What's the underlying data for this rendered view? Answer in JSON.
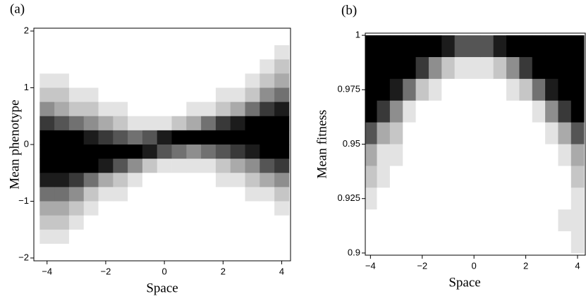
{
  "chart_data": [
    {
      "type": "heatmap",
      "panel_label": "(a)",
      "xlabel": "Space",
      "ylabel": "Mean phenotype",
      "xlim": [
        -4.45,
        4.3
      ],
      "ylim": [
        -2.05,
        2.05
      ],
      "xticks": [
        {
          "value": -4,
          "label": "−4"
        },
        {
          "value": -2,
          "label": "−2"
        },
        0,
        2,
        4
      ],
      "yticks": [
        {
          "value": -2,
          "label": "−2"
        },
        {
          "value": -1,
          "label": "−1"
        },
        0,
        1,
        2
      ],
      "x": [
        -4,
        -3.5,
        -3,
        -2.5,
        -2,
        -1.5,
        -1,
        -0.5,
        0,
        0.5,
        1,
        1.5,
        2,
        2.5,
        3,
        3.5,
        4
      ],
      "y": [
        1.875,
        1.625,
        1.375,
        1.125,
        0.875,
        0.625,
        0.375,
        0.125,
        -0.125,
        -0.375,
        -0.625,
        -0.875,
        -1.125,
        -1.375,
        -1.625,
        -1.875
      ],
      "z": [
        [
          0,
          0,
          0,
          1,
          2,
          4,
          7,
          9,
          9,
          9,
          8,
          5,
          3,
          2,
          1,
          0
        ],
        [
          0,
          0,
          0,
          1,
          2,
          3,
          6,
          9,
          9,
          9,
          8,
          5,
          3,
          2,
          1,
          0
        ],
        [
          0,
          0,
          0,
          0,
          1,
          2,
          5,
          9,
          9,
          9,
          7,
          4,
          2,
          1,
          0,
          0
        ],
        [
          0,
          0,
          0,
          0,
          1,
          2,
          4,
          8,
          9,
          9,
          5,
          2,
          1,
          0,
          0,
          0
        ],
        [
          0,
          0,
          0,
          0,
          0,
          1,
          3,
          7,
          9,
          8,
          3,
          1,
          0,
          0,
          0,
          0
        ],
        [
          0,
          0,
          0,
          0,
          0,
          1,
          2,
          6,
          9,
          6,
          2,
          1,
          0,
          0,
          0,
          0
        ],
        [
          0,
          0,
          0,
          0,
          0,
          0,
          1,
          5,
          9,
          4,
          1,
          0,
          0,
          0,
          0,
          0
        ],
        [
          0,
          0,
          0,
          0,
          0,
          0,
          1,
          6,
          8,
          2,
          0,
          0,
          0,
          0,
          0,
          0
        ],
        [
          0,
          0,
          0,
          0,
          0,
          0,
          1,
          8,
          6,
          1,
          0,
          0,
          0,
          0,
          0,
          0
        ],
        [
          0,
          0,
          0,
          0,
          0,
          0,
          2,
          9,
          5,
          1,
          0,
          0,
          0,
          0,
          0,
          0
        ],
        [
          0,
          0,
          0,
          0,
          0,
          1,
          3,
          9,
          4,
          1,
          0,
          0,
          0,
          0,
          0,
          0
        ],
        [
          0,
          0,
          0,
          0,
          0,
          1,
          5,
          9,
          5,
          1,
          0,
          0,
          0,
          0,
          0,
          0
        ],
        [
          0,
          0,
          0,
          0,
          1,
          2,
          7,
          9,
          6,
          2,
          1,
          0,
          0,
          0,
          0,
          0
        ],
        [
          0,
          0,
          0,
          0,
          1,
          3,
          8,
          9,
          7,
          3,
          1,
          0,
          0,
          0,
          0,
          0
        ],
        [
          0,
          0,
          0,
          1,
          2,
          5,
          9,
          9,
          8,
          4,
          2,
          1,
          0,
          0,
          0,
          0
        ],
        [
          0,
          0,
          1,
          2,
          4,
          7,
          9,
          9,
          9,
          6,
          3,
          1,
          0,
          0,
          0,
          0
        ],
        [
          0,
          1,
          2,
          3,
          5,
          8,
          9,
          9,
          9,
          7,
          4,
          2,
          1,
          0,
          0,
          0
        ]
      ],
      "zmax": 9
    },
    {
      "type": "heatmap",
      "panel_label": "(b)",
      "xlabel": "Space",
      "ylabel": "Mean fitness",
      "xlim": [
        -4.2,
        4.3
      ],
      "ylim": [
        0.899,
        1.001
      ],
      "xticks": [
        {
          "value": -4,
          "label": "−4"
        },
        {
          "value": -2,
          "label": "−2"
        },
        0,
        2,
        4
      ],
      "yticks": [
        0.9,
        0.925,
        0.95,
        0.975,
        1
      ],
      "x": [
        -4,
        -3.5,
        -3,
        -2.5,
        -2,
        -1.5,
        -1,
        -0.5,
        0,
        0.5,
        1,
        1.5,
        2,
        2.5,
        3,
        3.5,
        4
      ],
      "y": [
        0.995,
        0.985,
        0.975,
        0.965,
        0.955,
        0.945,
        0.935,
        0.925,
        0.915,
        0.905
      ],
      "z": [
        [
          9,
          9,
          9,
          9,
          6,
          3,
          2,
          1,
          0,
          0
        ],
        [
          9,
          9,
          9,
          7,
          3,
          1,
          1,
          0,
          0,
          0
        ],
        [
          9,
          9,
          8,
          4,
          2,
          1,
          0,
          0,
          0,
          0
        ],
        [
          9,
          9,
          5,
          1,
          0,
          0,
          0,
          0,
          0,
          0
        ],
        [
          9,
          7,
          2,
          0,
          0,
          0,
          0,
          0,
          0,
          0
        ],
        [
          9,
          4,
          1,
          0,
          0,
          0,
          0,
          0,
          0,
          0
        ],
        [
          8,
          2,
          0,
          0,
          0,
          0,
          0,
          0,
          0,
          0
        ],
        [
          6,
          1,
          0,
          0,
          0,
          0,
          0,
          0,
          0,
          0
        ],
        [
          6,
          1,
          0,
          0,
          0,
          0,
          0,
          0,
          0,
          0
        ],
        [
          6,
          1,
          0,
          0,
          0,
          0,
          0,
          0,
          0,
          0
        ],
        [
          8,
          2,
          0,
          0,
          0,
          0,
          0,
          0,
          0,
          0
        ],
        [
          9,
          4,
          1,
          0,
          0,
          0,
          0,
          0,
          0,
          0
        ],
        [
          9,
          7,
          2,
          0,
          0,
          0,
          0,
          0,
          0,
          0
        ],
        [
          9,
          9,
          5,
          1,
          0,
          0,
          0,
          0,
          0,
          0
        ],
        [
          9,
          9,
          8,
          4,
          1,
          0,
          0,
          0,
          0,
          0
        ],
        [
          9,
          9,
          9,
          7,
          3,
          1,
          0,
          0,
          1,
          0
        ],
        [
          9,
          9,
          9,
          9,
          6,
          3,
          2,
          1,
          1,
          1
        ]
      ],
      "zmax": 9
    }
  ]
}
